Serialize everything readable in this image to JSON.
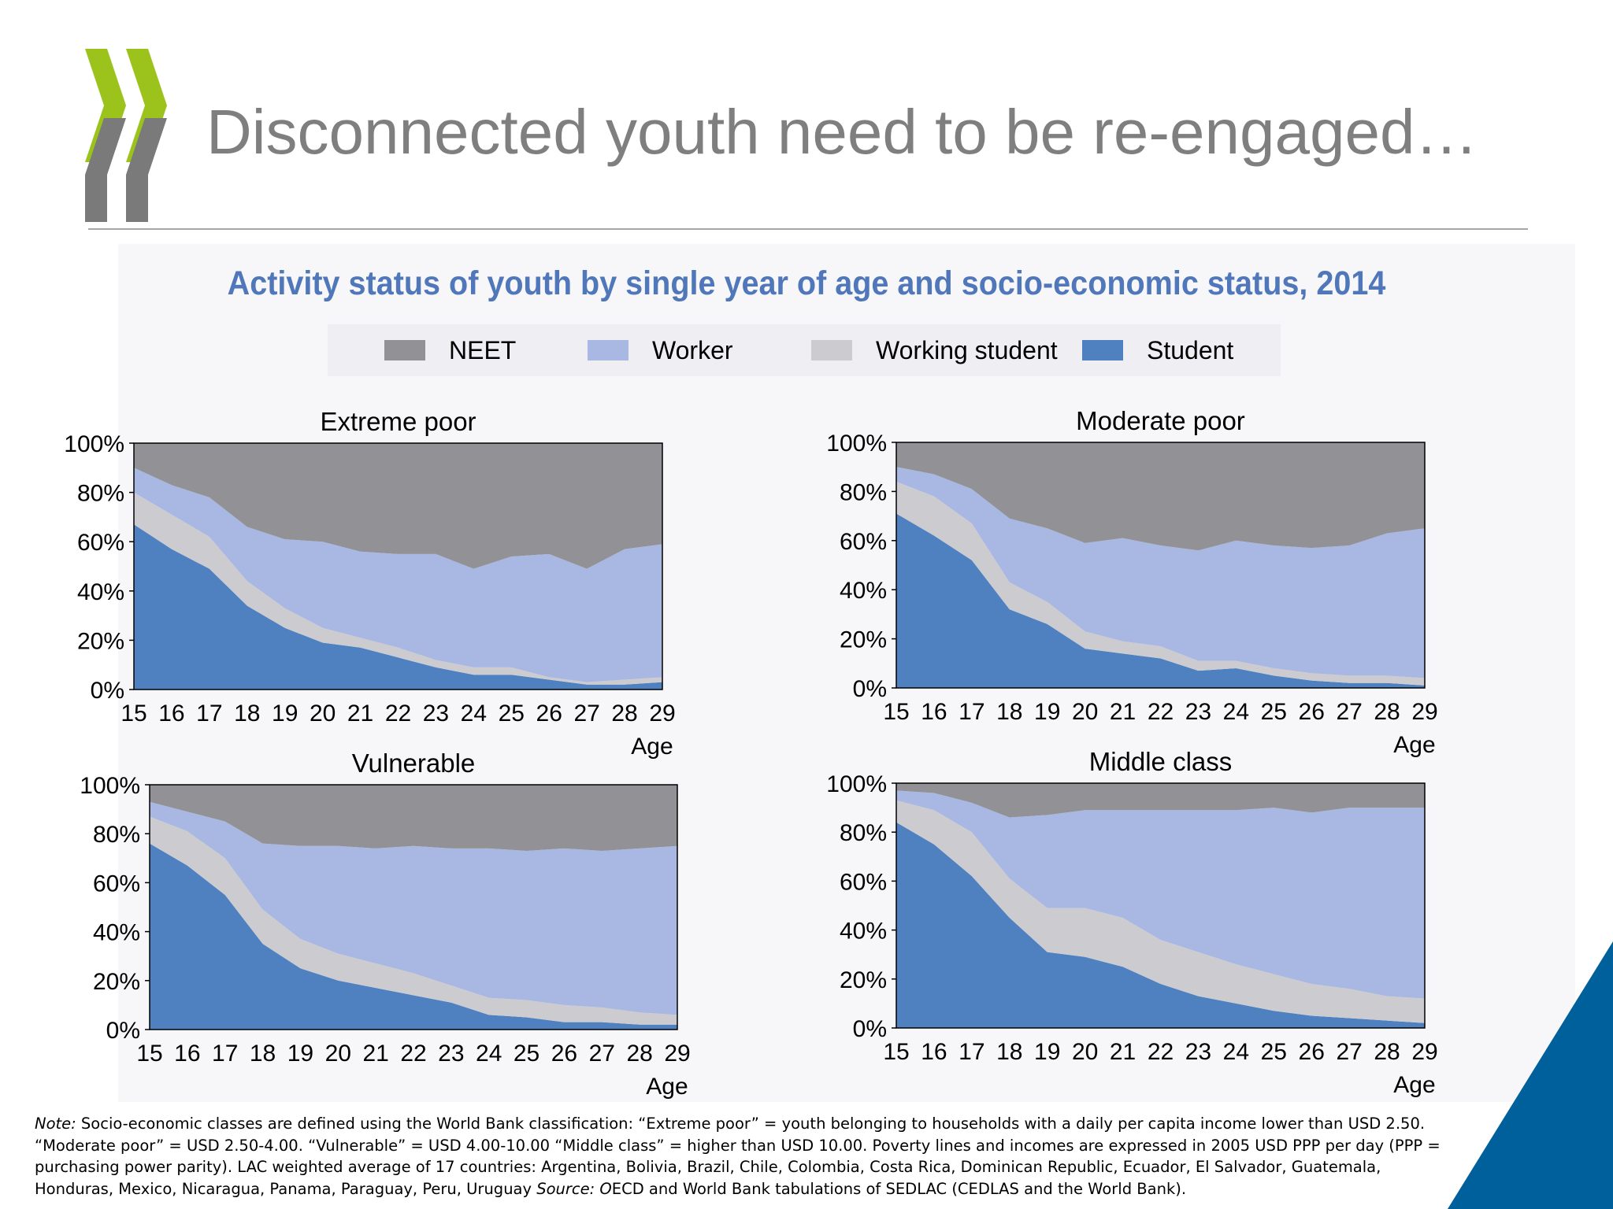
{
  "slide": {
    "title": "Disconnected youth need to be re-engaged…",
    "subtitle": "Activity status of youth by single year of age and socio-economic status, 2014"
  },
  "legend": [
    {
      "label": "NEET",
      "color": "#929195"
    },
    {
      "label": "Worker",
      "color": "#a8b8e2"
    },
    {
      "label": "Working student",
      "color": "#cccbd0"
    },
    {
      "label": "Student",
      "color": "#4f81c1"
    }
  ],
  "note": {
    "note_label": "Note:",
    "note_text": " Socio-economic classes are defined using the World Bank classification: “Extreme poor” = youth belonging to households with a daily per capita income lower than USD 2.50. “Moderate poor” = USD 2.50-4.00. “Vulnerable” = USD 4.00-10.00 “Middle class” = higher than USD 10.00. Poverty lines and incomes are expressed in 2005 USD PPP per day (PPP = purchasing power parity). LAC weighted average of 17 countries: Argentina, Bolivia, Brazil, Chile, Colombia, Costa Rica, Dominican Republic, Ecuador, El Salvador, Guatemala, Honduras, Mexico, Nicaragua, Panama, Paraguay, Peru, Uruguay ",
    "source_label": "Source: O",
    "source_text": "ECD and World Bank tabulations of SEDLAC (CEDLAS and the World Bank)."
  },
  "chart_data": [
    {
      "type": "area",
      "stacked": true,
      "title": "Extreme poor",
      "xlabel": "Age",
      "ylabel": "",
      "x": [
        15,
        16,
        17,
        18,
        19,
        20,
        21,
        22,
        23,
        24,
        25,
        26,
        27,
        28,
        29
      ],
      "y_ticks": [
        "0%",
        "20%",
        "40%",
        "60%",
        "80%",
        "100%"
      ],
      "ylim": [
        0,
        100
      ],
      "series": [
        {
          "name": "Student",
          "values": [
            67,
            57,
            49,
            34,
            25,
            19,
            17,
            13,
            9,
            6,
            6,
            4,
            2,
            2,
            3
          ]
        },
        {
          "name": "Working student",
          "values": [
            13,
            14,
            13,
            10,
            8,
            6,
            4,
            4,
            3,
            3,
            3,
            1,
            1,
            2,
            2
          ]
        },
        {
          "name": "Worker",
          "values": [
            10,
            12,
            16,
            22,
            28,
            35,
            35,
            38,
            43,
            40,
            45,
            50,
            46,
            53,
            54
          ]
        },
        {
          "name": "NEET",
          "values": [
            10,
            17,
            22,
            34,
            39,
            40,
            44,
            45,
            45,
            51,
            46,
            45,
            51,
            43,
            41
          ]
        }
      ]
    },
    {
      "type": "area",
      "stacked": true,
      "title": "Moderate poor",
      "xlabel": "Age",
      "ylabel": "",
      "x": [
        15,
        16,
        17,
        18,
        19,
        20,
        21,
        22,
        23,
        24,
        25,
        26,
        27,
        28,
        29
      ],
      "y_ticks": [
        "0%",
        "20%",
        "40%",
        "60%",
        "80%",
        "100%"
      ],
      "ylim": [
        0,
        100
      ],
      "series": [
        {
          "name": "Student",
          "values": [
            71,
            62,
            52,
            32,
            26,
            16,
            14,
            12,
            7,
            8,
            5,
            3,
            2,
            2,
            1
          ]
        },
        {
          "name": "Working student",
          "values": [
            13,
            16,
            15,
            11,
            9,
            7,
            5,
            5,
            4,
            3,
            3,
            3,
            3,
            3,
            3
          ]
        },
        {
          "name": "Worker",
          "values": [
            6,
            9,
            14,
            26,
            30,
            36,
            42,
            41,
            45,
            49,
            50,
            51,
            53,
            58,
            61
          ]
        },
        {
          "name": "NEET",
          "values": [
            10,
            13,
            19,
            31,
            35,
            41,
            39,
            42,
            44,
            40,
            42,
            43,
            42,
            37,
            35
          ]
        }
      ]
    },
    {
      "type": "area",
      "stacked": true,
      "title": "Vulnerable",
      "xlabel": "Age",
      "ylabel": "",
      "x": [
        15,
        16,
        17,
        18,
        19,
        20,
        21,
        22,
        23,
        24,
        25,
        26,
        27,
        28,
        29
      ],
      "y_ticks": [
        "0%",
        "20%",
        "40%",
        "60%",
        "80%",
        "100%"
      ],
      "ylim": [
        0,
        100
      ],
      "series": [
        {
          "name": "Student",
          "values": [
            76,
            67,
            55,
            35,
            25,
            20,
            17,
            14,
            11,
            6,
            5,
            3,
            3,
            2,
            2
          ]
        },
        {
          "name": "Working student",
          "values": [
            11,
            14,
            15,
            14,
            12,
            11,
            10,
            9,
            7,
            7,
            7,
            7,
            6,
            5,
            4
          ]
        },
        {
          "name": "Worker",
          "values": [
            6,
            8,
            15,
            27,
            38,
            44,
            47,
            52,
            56,
            61,
            61,
            64,
            64,
            67,
            69
          ]
        },
        {
          "name": "NEET",
          "values": [
            7,
            11,
            15,
            24,
            25,
            25,
            26,
            25,
            26,
            26,
            27,
            26,
            27,
            26,
            25
          ]
        }
      ]
    },
    {
      "type": "area",
      "stacked": true,
      "title": "Middle class",
      "xlabel": "Age",
      "ylabel": "",
      "x": [
        15,
        16,
        17,
        18,
        19,
        20,
        21,
        22,
        23,
        24,
        25,
        26,
        27,
        28,
        29
      ],
      "y_ticks": [
        "0%",
        "20%",
        "40%",
        "60%",
        "80%",
        "100%"
      ],
      "ylim": [
        0,
        100
      ],
      "series": [
        {
          "name": "Student",
          "values": [
            84,
            75,
            62,
            45,
            31,
            29,
            25,
            18,
            13,
            10,
            7,
            5,
            4,
            3,
            2
          ]
        },
        {
          "name": "Working student",
          "values": [
            9,
            14,
            18,
            16,
            18,
            20,
            20,
            18,
            18,
            16,
            15,
            13,
            12,
            10,
            10
          ]
        },
        {
          "name": "Worker",
          "values": [
            4,
            7,
            12,
            25,
            38,
            40,
            44,
            53,
            58,
            63,
            68,
            70,
            74,
            77,
            78
          ]
        },
        {
          "name": "NEET",
          "values": [
            3,
            4,
            8,
            14,
            13,
            11,
            11,
            11,
            11,
            11,
            10,
            12,
            10,
            10,
            10
          ]
        }
      ]
    }
  ]
}
